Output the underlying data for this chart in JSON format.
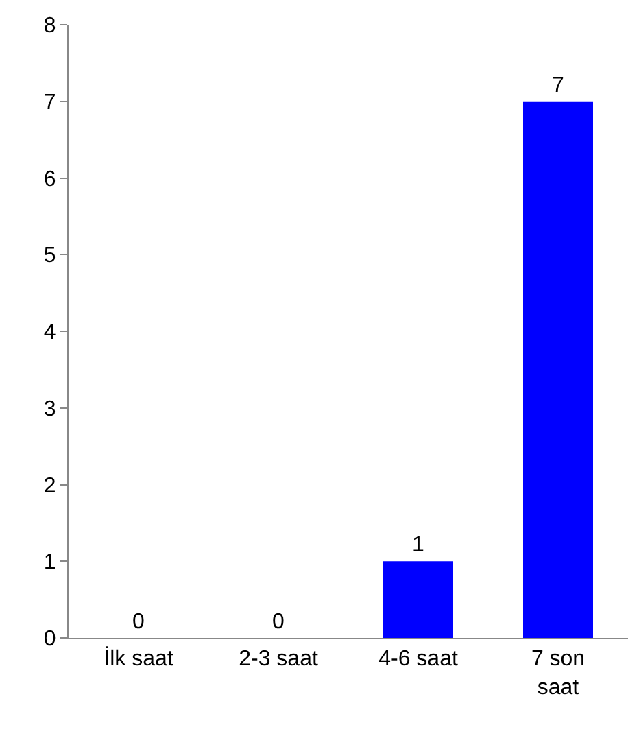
{
  "chart_data": {
    "type": "bar",
    "categories": [
      "İlk saat",
      "2-3 saat",
      "4-6 saat",
      "7 son saat"
    ],
    "values": [
      0,
      0,
      1,
      7
    ],
    "color": "#0000ff",
    "ylim": [
      0,
      8
    ],
    "yticks": [
      0,
      1,
      2,
      3,
      4,
      5,
      6,
      7,
      8
    ],
    "grid": false,
    "data_labels": true,
    "legend": false
  }
}
